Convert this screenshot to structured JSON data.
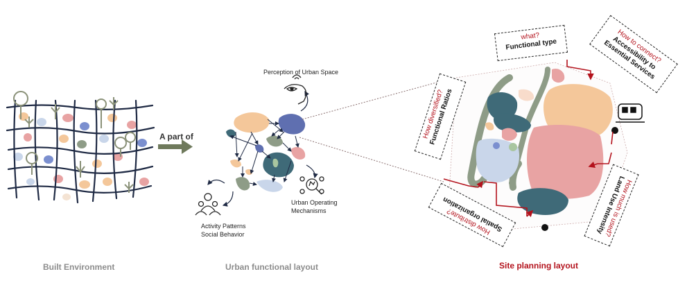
{
  "panels": {
    "built": {
      "caption": "Built Environment"
    },
    "arrow": {
      "label": "A part of"
    },
    "functional": {
      "caption": "Urban functional layout",
      "perception": "Perception of Urban Space",
      "activity_line1": "Activity Patterns",
      "activity_line2": "Social Behavior",
      "mechanism_line1": "Urban Operating",
      "mechanism_line2": "Mechanisms"
    },
    "site": {
      "caption": "Site planning layout",
      "questions": [
        {
          "id": "what",
          "question": "what?",
          "answer": "Functional type"
        },
        {
          "id": "connect",
          "question": "How to connect?",
          "answer_line1": "Accessibility to",
          "answer_line2": "Essential Services"
        },
        {
          "id": "diversified",
          "question": "How diversified?",
          "answer": "Functional Ratios"
        },
        {
          "id": "distribute",
          "question": "How distribute?",
          "answer": "Spatial organization"
        },
        {
          "id": "used",
          "question": "How much is used?",
          "answer": "Land Use Intensity"
        }
      ]
    }
  },
  "colors": {
    "grid": "#1f2a44",
    "tree": "#8a9178",
    "accent_red": "#b3121c",
    "caption_gray": "#8c8c8c",
    "peach": "#f4c79a",
    "pink": "#e8a3a3",
    "teal": "#3f6a78",
    "blue": "#7b8fcf",
    "sage": "#8e9c87",
    "lightblue": "#c9d6ea"
  },
  "icons": [
    "tree-icon",
    "eye-icon",
    "people-icon",
    "mechanism-icon",
    "train-icon"
  ]
}
